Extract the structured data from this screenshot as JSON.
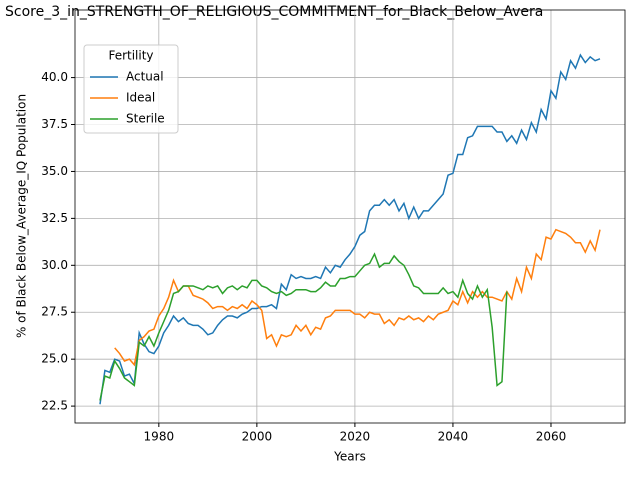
{
  "chart_data": {
    "type": "line",
    "title": "Score_3_in_STRENGTH_OF_RELIGIOUS_COMMITMENT_for_Black_Below_Avera",
    "x_label": "Years",
    "y_label": "% of Black Below_Average_IQ Population",
    "x": [
      1968,
      1969,
      1970,
      1971,
      1972,
      1973,
      1974,
      1975,
      1976,
      1977,
      1978,
      1979,
      1980,
      1981,
      1982,
      1983,
      1984,
      1985,
      1986,
      1987,
      1988,
      1989,
      1990,
      1991,
      1992,
      1993,
      1994,
      1995,
      1996,
      1997,
      1998,
      1999,
      2000,
      2001,
      2002,
      2003,
      2004,
      2005,
      2006,
      2007,
      2008,
      2009,
      2010,
      2011,
      2012,
      2013,
      2014,
      2015,
      2016,
      2017,
      2018,
      2019,
      2020,
      2021,
      2022,
      2023,
      2024,
      2025,
      2026,
      2027,
      2028,
      2029,
      2030,
      2031,
      2032,
      2033,
      2034,
      2035,
      2036,
      2037,
      2038,
      2039,
      2040,
      2041,
      2042,
      2043,
      2044,
      2045,
      2046,
      2047,
      2048,
      2049,
      2050,
      2051,
      2052,
      2053,
      2054,
      2055,
      2056,
      2057,
      2058,
      2059,
      2060,
      2061,
      2062,
      2063,
      2064,
      2065,
      2066,
      2067,
      2068,
      2069,
      2070
    ],
    "series": [
      {
        "name": "Actual",
        "color": "#1f77b4",
        "values": [
          22.6,
          24.4,
          24.3,
          25.0,
          24.9,
          24.1,
          24.2,
          23.7,
          26.4,
          25.8,
          25.4,
          25.3,
          25.7,
          26.4,
          26.8,
          27.3,
          27.0,
          27.2,
          26.9,
          26.8,
          26.8,
          26.6,
          26.3,
          26.4,
          26.8,
          27.1,
          27.3,
          27.3,
          27.2,
          27.4,
          27.5,
          27.7,
          27.7,
          27.8,
          27.8,
          27.9,
          27.7,
          29.0,
          28.7,
          29.5,
          29.3,
          29.4,
          29.3,
          29.3,
          29.4,
          29.3,
          29.9,
          29.6,
          30.0,
          29.9,
          30.3,
          30.6,
          31.0,
          31.6,
          31.8,
          32.9,
          33.2,
          33.2,
          33.5,
          33.2,
          33.5,
          32.9,
          33.3,
          32.5,
          33.1,
          32.5,
          32.9,
          32.9,
          33.2,
          33.5,
          33.8,
          34.8,
          34.9,
          35.9,
          35.9,
          36.8,
          36.9,
          37.4,
          37.4,
          37.4,
          37.4,
          37.1,
          37.1,
          36.6,
          36.9,
          36.5,
          37.2,
          36.7,
          37.6,
          37.1,
          38.3,
          37.8,
          39.3,
          38.9,
          40.3,
          39.9,
          40.9,
          40.5,
          41.2,
          40.8,
          41.1,
          40.9,
          41.0
        ]
      },
      {
        "name": "Ideal",
        "color": "#ff7f0e",
        "values": [
          null,
          null,
          null,
          25.6,
          25.3,
          24.9,
          25.0,
          24.7,
          26.0,
          26.2,
          26.5,
          26.6,
          27.3,
          27.7,
          28.3,
          29.2,
          28.6,
          28.9,
          28.9,
          28.4,
          28.3,
          28.2,
          28.0,
          27.7,
          27.8,
          27.8,
          27.6,
          27.8,
          27.7,
          27.9,
          27.7,
          28.1,
          27.9,
          27.6,
          26.1,
          26.3,
          25.7,
          26.3,
          26.2,
          26.3,
          26.8,
          26.5,
          26.8,
          26.3,
          26.7,
          26.6,
          27.2,
          27.3,
          27.6,
          27.6,
          27.6,
          27.6,
          27.4,
          27.4,
          27.2,
          27.5,
          27.4,
          27.4,
          26.9,
          27.1,
          26.8,
          27.2,
          27.1,
          27.3,
          27.1,
          27.2,
          27.0,
          27.3,
          27.1,
          27.4,
          27.5,
          27.6,
          28.1,
          27.9,
          28.6,
          28.0,
          28.6,
          28.3,
          28.6,
          28.3,
          28.3,
          28.2,
          28.1,
          28.6,
          28.2,
          29.3,
          28.6,
          29.9,
          29.3,
          30.6,
          30.3,
          31.5,
          31.4,
          31.9,
          31.8,
          31.7,
          31.5,
          31.2,
          31.2,
          30.7,
          31.3,
          30.8,
          31.9
        ]
      },
      {
        "name": "Sterile",
        "color": "#2ca02c",
        "values": [
          22.8,
          24.1,
          24.0,
          24.9,
          24.5,
          24.0,
          23.8,
          23.6,
          25.9,
          25.7,
          26.2,
          25.7,
          26.4,
          27.0,
          27.6,
          28.5,
          28.6,
          28.9,
          28.9,
          28.9,
          28.8,
          28.7,
          28.9,
          28.8,
          28.9,
          28.5,
          28.8,
          28.9,
          28.7,
          28.9,
          28.8,
          29.2,
          29.2,
          28.9,
          28.8,
          28.6,
          28.5,
          28.6,
          28.4,
          28.5,
          28.7,
          28.7,
          28.7,
          28.6,
          28.6,
          28.8,
          29.1,
          28.9,
          28.9,
          29.3,
          29.3,
          29.4,
          29.4,
          29.7,
          30.0,
          30.1,
          30.6,
          29.9,
          30.1,
          30.1,
          30.5,
          30.2,
          30.0,
          29.5,
          28.9,
          28.8,
          28.5,
          28.5,
          28.5,
          28.5,
          28.8,
          28.5,
          28.6,
          28.3,
          29.2,
          28.5,
          28.2,
          28.9,
          28.3,
          28.7,
          26.7,
          23.6,
          23.8,
          28.6,
          null,
          null,
          null,
          null,
          null,
          null,
          null,
          null,
          null,
          null,
          null,
          null,
          null,
          null,
          null,
          null,
          null,
          null,
          null
        ]
      }
    ],
    "xlim": [
      1962.9,
      2075.1
    ],
    "ylim": [
      21.6,
      43.6
    ],
    "xticks": [
      1980,
      2000,
      2020,
      2040,
      2060
    ],
    "yticks": [
      22.5,
      {
        "value": 25,
        "label": "25.0"
      },
      27.5,
      {
        "value": 30,
        "label": "30.0"
      },
      32.5,
      {
        "value": 35,
        "label": "35.0"
      },
      37.5,
      {
        "value": 40,
        "label": "40.0"
      }
    ],
    "grid": true,
    "legend_title": "Fertility",
    "legend_position": "upper left"
  }
}
